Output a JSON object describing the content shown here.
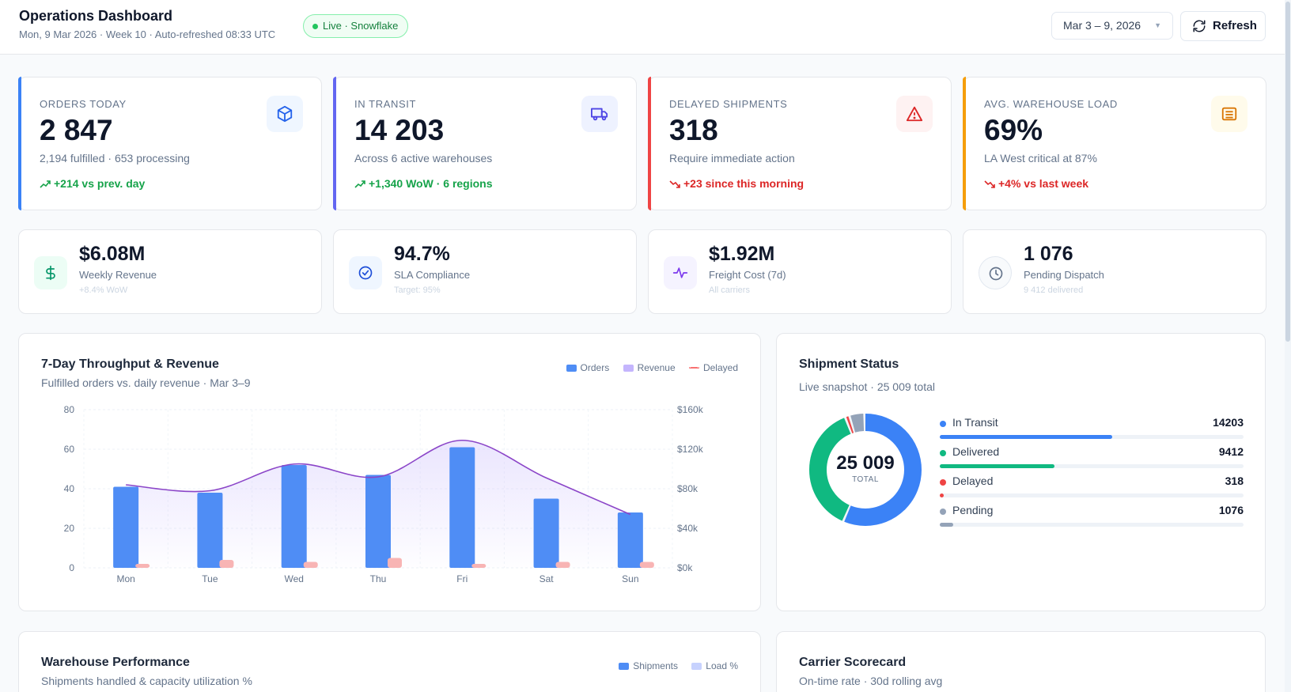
{
  "header": {
    "title": "Operations Dashboard",
    "subtitle": "Mon, 9 Mar 2026 · Week 10 · Auto-refreshed 08:33 UTC",
    "live_badge": "Live · Snowflake",
    "date_range": "Mar 3 – 9, 2026",
    "refresh_label": "Refresh"
  },
  "kpis": [
    {
      "label": "ORDERS TODAY",
      "value": "2 847",
      "sub": "2,194 fulfilled · 653 processing",
      "delta": "+214 vs prev. day",
      "icon": "package-icon",
      "accent": "#3b82f6",
      "delta_color": "#16a34a"
    },
    {
      "label": "IN TRANSIT",
      "value": "14 203",
      "sub": "Across 6 active warehouses",
      "delta": "+1,340 WoW · 6 regions",
      "icon": "truck-icon",
      "accent": "#6366f1",
      "delta_color": "#16a34a"
    },
    {
      "label": "DELAYED SHIPMENTS",
      "value": "318",
      "sub": "Require immediate action",
      "delta": "+23 since this morning",
      "icon": "alert-triangle-icon",
      "accent": "#ef4444",
      "delta_color": "#dc2626"
    },
    {
      "label": "AVG. WAREHOUSE LOAD",
      "value": "69%",
      "sub": "LA West critical at 87%",
      "delta": "+4% vs last week",
      "icon": "warehouse-icon",
      "accent": "#f59e0b",
      "delta_color": "#dc2626"
    }
  ],
  "minis": [
    {
      "value": "$6.08M",
      "label": "Weekly Revenue",
      "sub": "+8.4% WoW",
      "icon": "dollar-icon"
    },
    {
      "value": "94.7%",
      "label": "SLA Compliance",
      "sub": "Target: 95%",
      "icon": "check-circle-icon"
    },
    {
      "value": "$1.92M",
      "label": "Freight Cost (7d)",
      "sub": "All carriers",
      "icon": "activity-icon"
    },
    {
      "value": "1 076",
      "label": "Pending Dispatch",
      "sub": "9 412 delivered",
      "icon": "clock-icon"
    }
  ],
  "throughput": {
    "title": "7-Day Throughput & Revenue",
    "subtitle": "Fulfilled orders vs. daily revenue · Mar 3–9",
    "legend": {
      "orders": "Orders",
      "revenue": "Revenue",
      "delayed": "Delayed"
    }
  },
  "chart_data": {
    "type": "bar",
    "title": "7-Day Throughput & Revenue",
    "categories": [
      "Mon",
      "Tue",
      "Wed",
      "Thu",
      "Fri",
      "Sat",
      "Sun"
    ],
    "series": [
      {
        "name": "Orders",
        "kind": "bar",
        "axis": "left",
        "values": [
          41,
          38,
          52,
          47,
          61,
          35,
          28
        ]
      },
      {
        "name": "Delayed",
        "kind": "bar",
        "axis": "left",
        "values": [
          2,
          4,
          3,
          5,
          2,
          3,
          3
        ]
      },
      {
        "name": "Revenue",
        "kind": "line",
        "axis": "right",
        "values": [
          84,
          78,
          105,
          92,
          129,
          91,
          54
        ]
      }
    ],
    "y_left": {
      "ticks": [
        "0",
        "20",
        "40",
        "60",
        "80"
      ],
      "lim": [
        0,
        80
      ]
    },
    "y_right": {
      "ticks": [
        "$0k",
        "$40k",
        "$80k",
        "$120k",
        "$160k"
      ],
      "lim": [
        0,
        160
      ]
    },
    "colors": {
      "orders": "#4f8df5",
      "delayed": "#f8b4b4",
      "revenue": "#8b45c8",
      "revenue_legend": "#c4b5fd"
    }
  },
  "shipment_status": {
    "title": "Shipment Status",
    "subtitle": "Live snapshot · 25 009 total",
    "total": "25 009",
    "total_label": "TOTAL",
    "items": [
      {
        "name": "In Transit",
        "value": 14203,
        "display": "14203",
        "color": "#3b82f6"
      },
      {
        "name": "Delivered",
        "value": 9412,
        "display": "9412",
        "color": "#10b981"
      },
      {
        "name": "Delayed",
        "value": 318,
        "display": "318",
        "color": "#ef4444"
      },
      {
        "name": "Pending",
        "value": 1076,
        "display": "1076",
        "color": "#94a3b8"
      }
    ]
  },
  "warehouse": {
    "title": "Warehouse Performance",
    "subtitle": "Shipments handled & capacity utilization %",
    "legend": {
      "shipments": "Shipments",
      "load": "Load %"
    }
  },
  "carrier": {
    "title": "Carrier Scorecard",
    "subtitle": "On-time rate · 30d rolling avg"
  }
}
